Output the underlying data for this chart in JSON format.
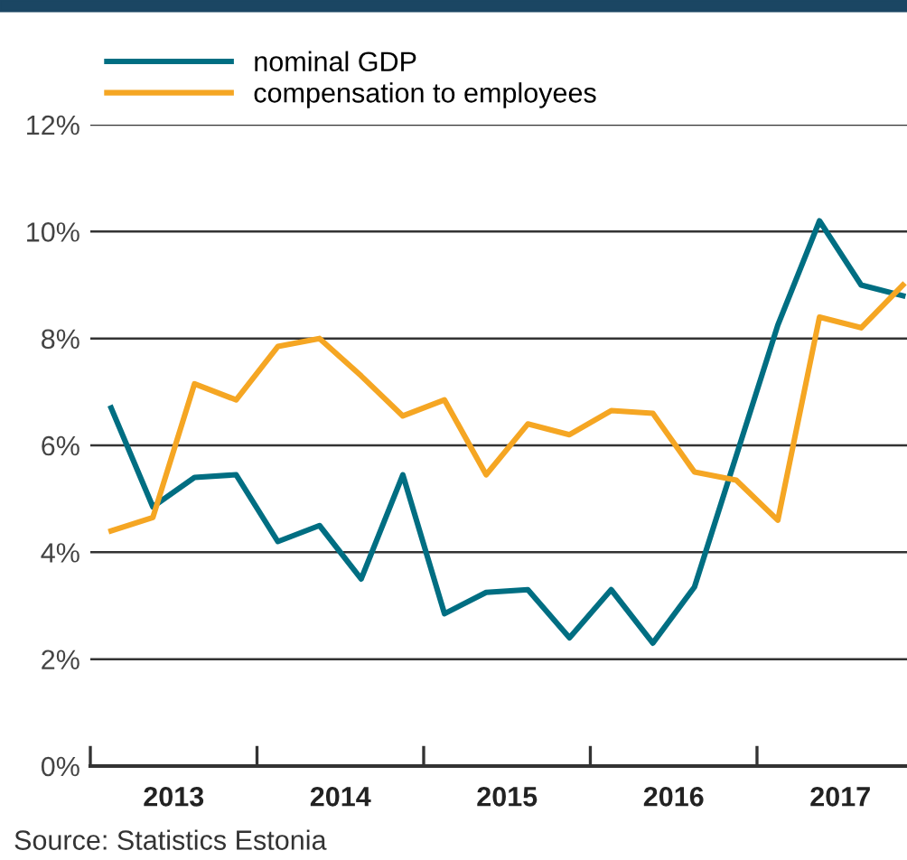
{
  "chart_data": {
    "type": "line",
    "x": [
      2013.125,
      2013.375,
      2013.625,
      2013.875,
      2014.125,
      2014.375,
      2014.625,
      2014.875,
      2015.125,
      2015.375,
      2015.625,
      2015.875,
      2016.125,
      2016.375,
      2016.625,
      2016.875,
      2017.125,
      2017.375,
      2017.625,
      2017.875
    ],
    "series": [
      {
        "name": "nominal GDP",
        "color": "#006e82",
        "values": [
          6.7,
          4.85,
          5.4,
          5.45,
          4.2,
          4.5,
          3.5,
          5.45,
          2.85,
          3.25,
          3.3,
          2.4,
          3.3,
          2.3,
          3.35,
          5.8,
          8.25,
          10.2,
          9.0,
          8.8
        ]
      },
      {
        "name": "compensation to employees",
        "color": "#f5a623",
        "values": [
          4.4,
          4.65,
          7.15,
          6.85,
          7.85,
          8.0,
          7.3,
          6.55,
          6.85,
          5.45,
          6.4,
          6.2,
          6.65,
          6.6,
          5.5,
          5.35,
          4.6,
          8.4,
          8.2,
          9.0
        ]
      }
    ],
    "xlim": [
      2013,
      2017.9
    ],
    "xticks": [
      {
        "value": 2013.5,
        "label": "2013"
      },
      {
        "value": 2014.5,
        "label": "2014"
      },
      {
        "value": 2015.5,
        "label": "2015"
      },
      {
        "value": 2016.5,
        "label": "2016"
      },
      {
        "value": 2017.5,
        "label": "2017"
      },
      {
        "value": 2013,
        "label": null
      },
      {
        "value": 2014,
        "label": null
      },
      {
        "value": 2015,
        "label": null
      },
      {
        "value": 2016,
        "label": null
      },
      {
        "value": 2017,
        "label": null
      }
    ],
    "ylim": [
      0,
      12
    ],
    "yticks": [
      {
        "value": 0,
        "label": "0%"
      },
      {
        "value": 2,
        "label": "2%"
      },
      {
        "value": 4,
        "label": "4%"
      },
      {
        "value": 6,
        "label": "6%"
      },
      {
        "value": 8,
        "label": "8%"
      },
      {
        "value": 10,
        "label": "10%"
      },
      {
        "value": 12,
        "label": "12%"
      }
    ],
    "grid": "y",
    "legend": "top left",
    "marker": "none",
    "line_style": "solid",
    "annotations": [
      "Source: Statistics Estonia"
    ]
  }
}
